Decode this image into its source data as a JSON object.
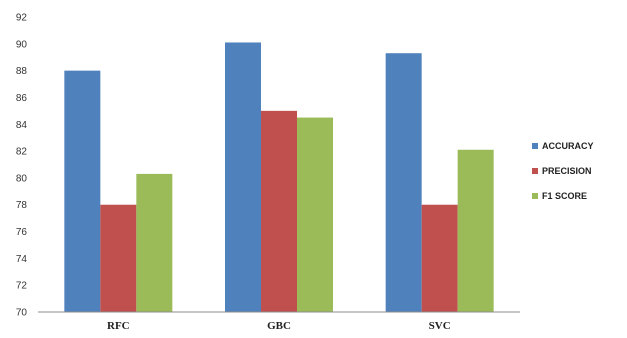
{
  "chart_data": {
    "type": "bar",
    "categories": [
      "RFC",
      "GBC",
      "SVC"
    ],
    "series": [
      {
        "name": "ACCURACY",
        "color": "#4f81bd",
        "values": [
          88.0,
          90.1,
          89.3
        ]
      },
      {
        "name": "PRECISION",
        "color": "#c0504d",
        "values": [
          78.0,
          85.0,
          78.0
        ]
      },
      {
        "name": "F1 SCORE",
        "color": "#9bbb59",
        "values": [
          80.3,
          84.5,
          82.1
        ]
      }
    ],
    "ylim": [
      70,
      92
    ],
    "yticks": [
      70,
      72,
      74,
      76,
      78,
      80,
      82,
      84,
      86,
      88,
      90,
      92
    ],
    "grid": false,
    "legend_position": "right",
    "title": "",
    "xlabel": "",
    "ylabel": ""
  }
}
